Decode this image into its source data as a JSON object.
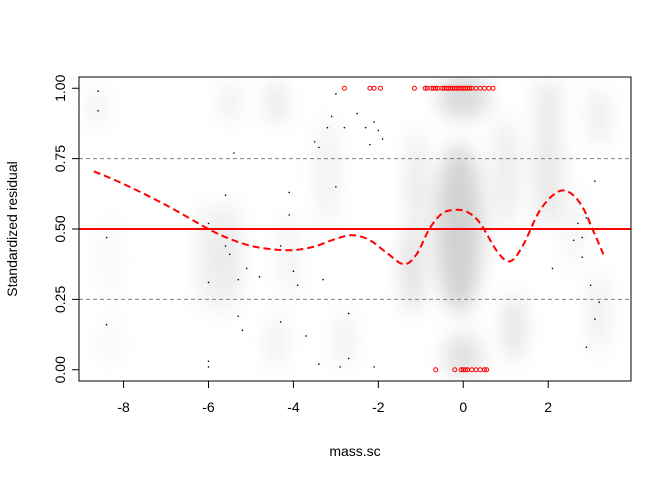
{
  "chart_data": {
    "type": "scatter",
    "title": "",
    "xlabel": "mass.sc",
    "ylabel": "Standardized residual",
    "xlim": [
      -9.05,
      3.95
    ],
    "ylim": [
      -0.04,
      1.04
    ],
    "x_ticks": [
      -8,
      -6,
      -4,
      -2,
      0,
      2
    ],
    "x_tick_labels": [
      "-8",
      "-6",
      "-4",
      "-2",
      "0",
      "2"
    ],
    "y_ticks": [
      0.0,
      0.25,
      0.5,
      0.75,
      1.0
    ],
    "y_tick_labels": [
      "0.00",
      "0.25",
      "0.50",
      "0.75",
      "1.00"
    ],
    "grid": false,
    "colors": {
      "reference_line": "#ff0000",
      "smooth_line": "#ff0000",
      "outliers": "#ff0000",
      "dashed_quartiles": "#808080",
      "points": "#000000"
    },
    "reference_lines": [
      {
        "y": 0.25,
        "style": "dashed",
        "color": "#808080"
      },
      {
        "y": 0.5,
        "style": "solid",
        "color": "#ff0000"
      },
      {
        "y": 0.75,
        "style": "dashed",
        "color": "#808080"
      }
    ],
    "smooth_curve": {
      "x": [
        -8.7,
        -8.0,
        -7.0,
        -6.0,
        -5.5,
        -5.0,
        -4.5,
        -4.0,
        -3.5,
        -3.0,
        -2.6,
        -2.2,
        -1.8,
        -1.4,
        -1.1,
        -0.8,
        -0.5,
        -0.2,
        0.1,
        0.4,
        0.8,
        1.1,
        1.4,
        1.8,
        2.2,
        2.5,
        2.8,
        3.1,
        3.3
      ],
      "y": [
        0.705,
        0.66,
        0.585,
        0.5,
        0.465,
        0.44,
        0.428,
        0.425,
        0.438,
        0.465,
        0.478,
        0.46,
        0.415,
        0.375,
        0.41,
        0.5,
        0.555,
        0.568,
        0.56,
        0.52,
        0.42,
        0.385,
        0.44,
        0.565,
        0.63,
        0.63,
        0.58,
        0.48,
        0.41
      ]
    },
    "points": [
      {
        "x": -8.6,
        "y": 0.99
      },
      {
        "x": -8.6,
        "y": 0.92
      },
      {
        "x": -8.4,
        "y": 0.47
      },
      {
        "x": -8.4,
        "y": 0.16
      },
      {
        "x": -6.0,
        "y": 0.52
      },
      {
        "x": -6.0,
        "y": 0.31
      },
      {
        "x": -6.0,
        "y": 0.03
      },
      {
        "x": -6.0,
        "y": 0.01
      },
      {
        "x": -5.6,
        "y": 0.62
      },
      {
        "x": -5.6,
        "y": 0.44
      },
      {
        "x": -5.5,
        "y": 0.41
      },
      {
        "x": -5.4,
        "y": 0.77
      },
      {
        "x": -5.4,
        "y": 0.46
      },
      {
        "x": -5.3,
        "y": 0.32
      },
      {
        "x": -5.3,
        "y": 0.19
      },
      {
        "x": -5.2,
        "y": 0.14
      },
      {
        "x": -5.1,
        "y": 0.36
      },
      {
        "x": -4.8,
        "y": 0.33
      },
      {
        "x": -4.3,
        "y": 0.17
      },
      {
        "x": -4.3,
        "y": 0.44
      },
      {
        "x": -4.1,
        "y": 0.55
      },
      {
        "x": -4.1,
        "y": 0.63
      },
      {
        "x": -4.0,
        "y": 0.35
      },
      {
        "x": -3.9,
        "y": 0.3
      },
      {
        "x": -3.7,
        "y": 0.12
      },
      {
        "x": -3.5,
        "y": 0.81
      },
      {
        "x": -3.4,
        "y": 0.79
      },
      {
        "x": -3.3,
        "y": 0.32
      },
      {
        "x": -3.2,
        "y": 0.86
      },
      {
        "x": -3.1,
        "y": 0.9
      },
      {
        "x": -3.0,
        "y": 0.98
      },
      {
        "x": -3.0,
        "y": 0.65
      },
      {
        "x": -2.9,
        "y": 0.01
      },
      {
        "x": -2.8,
        "y": 0.86
      },
      {
        "x": -2.7,
        "y": 0.04
      },
      {
        "x": -2.7,
        "y": 0.2
      },
      {
        "x": -2.5,
        "y": 0.91
      },
      {
        "x": -2.3,
        "y": 0.86
      },
      {
        "x": -2.2,
        "y": 0.8
      },
      {
        "x": -2.1,
        "y": 0.88
      },
      {
        "x": -2.0,
        "y": 0.85
      },
      {
        "x": -1.9,
        "y": 0.82
      },
      {
        "x": -2.1,
        "y": 0.01
      },
      {
        "x": -3.4,
        "y": 0.02
      },
      {
        "x": 2.6,
        "y": 0.46
      },
      {
        "x": 2.7,
        "y": 0.52
      },
      {
        "x": 2.8,
        "y": 0.47
      },
      {
        "x": 2.8,
        "y": 0.4
      },
      {
        "x": 2.9,
        "y": 0.54
      },
      {
        "x": 3.0,
        "y": 0.3
      },
      {
        "x": 3.1,
        "y": 0.18
      },
      {
        "x": 3.2,
        "y": 0.24
      },
      {
        "x": 2.9,
        "y": 0.08
      },
      {
        "x": 3.1,
        "y": 0.67
      },
      {
        "x": 2.1,
        "y": 0.36
      }
    ],
    "outlier_points": [
      {
        "x": -2.8,
        "y": 1.0
      },
      {
        "x": -2.2,
        "y": 1.0
      },
      {
        "x": -2.1,
        "y": 1.0
      },
      {
        "x": -1.95,
        "y": 1.0
      },
      {
        "x": -1.15,
        "y": 1.0
      },
      {
        "x": -0.9,
        "y": 1.0
      },
      {
        "x": -0.85,
        "y": 1.0
      },
      {
        "x": -0.75,
        "y": 1.0
      },
      {
        "x": -0.7,
        "y": 1.0
      },
      {
        "x": -0.65,
        "y": 1.0
      },
      {
        "x": -0.6,
        "y": 1.0
      },
      {
        "x": -0.5,
        "y": 1.0
      },
      {
        "x": -0.45,
        "y": 1.0
      },
      {
        "x": -0.4,
        "y": 1.0
      },
      {
        "x": -0.35,
        "y": 1.0
      },
      {
        "x": -0.3,
        "y": 1.0
      },
      {
        "x": -0.25,
        "y": 1.0
      },
      {
        "x": -0.2,
        "y": 1.0
      },
      {
        "x": -0.15,
        "y": 1.0
      },
      {
        "x": -0.1,
        "y": 1.0
      },
      {
        "x": -0.05,
        "y": 1.0
      },
      {
        "x": 0.0,
        "y": 1.0
      },
      {
        "x": 0.05,
        "y": 1.0
      },
      {
        "x": 0.1,
        "y": 1.0
      },
      {
        "x": 0.15,
        "y": 1.0
      },
      {
        "x": 0.2,
        "y": 1.0
      },
      {
        "x": 0.3,
        "y": 1.0
      },
      {
        "x": 0.4,
        "y": 1.0
      },
      {
        "x": 0.5,
        "y": 1.0
      },
      {
        "x": 0.6,
        "y": 1.0
      },
      {
        "x": 0.7,
        "y": 1.0
      },
      {
        "x": -0.65,
        "y": 0.0
      },
      {
        "x": -0.2,
        "y": 0.0
      },
      {
        "x": -0.05,
        "y": 0.0
      },
      {
        "x": 0.0,
        "y": 0.0
      },
      {
        "x": 0.05,
        "y": 0.0
      },
      {
        "x": 0.1,
        "y": 0.0
      },
      {
        "x": 0.2,
        "y": 0.0
      },
      {
        "x": 0.3,
        "y": 0.0
      },
      {
        "x": 0.4,
        "y": 0.0
      },
      {
        "x": 0.5,
        "y": 0.0
      },
      {
        "x": 0.55,
        "y": 0.0
      }
    ],
    "density_bands": [
      {
        "x": -8.6,
        "y": 0.93,
        "spread_x": 0.12,
        "spread_y": 0.07,
        "intensity": 0.1
      },
      {
        "x": -8.3,
        "y": 0.4,
        "spread_x": 0.15,
        "spread_y": 0.15,
        "intensity": 0.05
      },
      {
        "x": -8.3,
        "y": 0.1,
        "spread_x": 0.15,
        "spread_y": 0.08,
        "intensity": 0.06
      },
      {
        "x": -6.0,
        "y": 0.4,
        "spread_x": 0.25,
        "spread_y": 0.2,
        "intensity": 0.07
      },
      {
        "x": -5.5,
        "y": 0.4,
        "spread_x": 0.2,
        "spread_y": 0.2,
        "intensity": 0.1
      },
      {
        "x": -5.5,
        "y": 0.95,
        "spread_x": 0.2,
        "spread_y": 0.07,
        "intensity": 0.08
      },
      {
        "x": -4.4,
        "y": 0.95,
        "spread_x": 0.18,
        "spread_y": 0.08,
        "intensity": 0.12
      },
      {
        "x": -4.4,
        "y": 0.1,
        "spread_x": 0.18,
        "spread_y": 0.1,
        "intensity": 0.08
      },
      {
        "x": -4.1,
        "y": 0.4,
        "spread_x": 0.2,
        "spread_y": 0.15,
        "intensity": 0.06
      },
      {
        "x": -3.2,
        "y": 0.7,
        "spread_x": 0.3,
        "spread_y": 0.2,
        "intensity": 0.05
      },
      {
        "x": -2.8,
        "y": 0.1,
        "spread_x": 0.2,
        "spread_y": 0.1,
        "intensity": 0.07
      },
      {
        "x": -1.2,
        "y": 0.35,
        "spread_x": 0.2,
        "spread_y": 0.15,
        "intensity": 0.16
      },
      {
        "x": -1.1,
        "y": 0.65,
        "spread_x": 0.2,
        "spread_y": 0.2,
        "intensity": 0.1
      },
      {
        "x": -0.1,
        "y": 0.5,
        "spread_x": 0.55,
        "spread_y": 0.3,
        "intensity": 0.18
      },
      {
        "x": 0.0,
        "y": 0.97,
        "spread_x": 0.6,
        "spread_y": 0.08,
        "intensity": 0.15
      },
      {
        "x": 0.0,
        "y": 0.05,
        "spread_x": 0.45,
        "spread_y": 0.08,
        "intensity": 0.12
      },
      {
        "x": 1.2,
        "y": 0.15,
        "spread_x": 0.2,
        "spread_y": 0.12,
        "intensity": 0.14
      },
      {
        "x": 1.0,
        "y": 0.7,
        "spread_x": 0.3,
        "spread_y": 0.2,
        "intensity": 0.08
      },
      {
        "x": 2.0,
        "y": 0.7,
        "spread_x": 0.3,
        "spread_y": 0.2,
        "intensity": 0.1
      },
      {
        "x": 2.0,
        "y": 0.95,
        "spread_x": 0.35,
        "spread_y": 0.08,
        "intensity": 0.08
      },
      {
        "x": 3.2,
        "y": 0.9,
        "spread_x": 0.15,
        "spread_y": 0.1,
        "intensity": 0.12
      },
      {
        "x": 3.2,
        "y": 0.2,
        "spread_x": 0.15,
        "spread_y": 0.15,
        "intensity": 0.1
      },
      {
        "x": 2.6,
        "y": 0.5,
        "spread_x": 0.2,
        "spread_y": 0.15,
        "intensity": 0.05
      }
    ]
  }
}
